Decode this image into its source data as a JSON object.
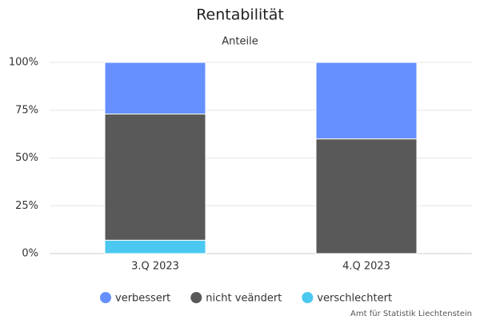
{
  "chart_data": {
    "type": "stacked-bar",
    "title": "Rentabilität",
    "subtitle": "Anteile",
    "categories": [
      "3.Q 2023",
      "4.Q 2023"
    ],
    "series": [
      {
        "name": "verbessert",
        "color": "#6690ff",
        "values": [
          27,
          40
        ]
      },
      {
        "name": "nicht veändert",
        "color": "#595959",
        "values": [
          66,
          60
        ]
      },
      {
        "name": "verschlechtert",
        "color": "#4ac8f0",
        "values": [
          7,
          0
        ]
      }
    ],
    "ylim": [
      0,
      100
    ],
    "yticks": [
      {
        "value": 0,
        "label": "0%"
      },
      {
        "value": 25,
        "label": "25%"
      },
      {
        "value": 50,
        "label": "50%"
      },
      {
        "value": 75,
        "label": "75%"
      },
      {
        "value": 100,
        "label": "100%"
      }
    ],
    "grid": true,
    "legend": "bottom",
    "credit": "Amt für Statistik Liechtenstein"
  }
}
